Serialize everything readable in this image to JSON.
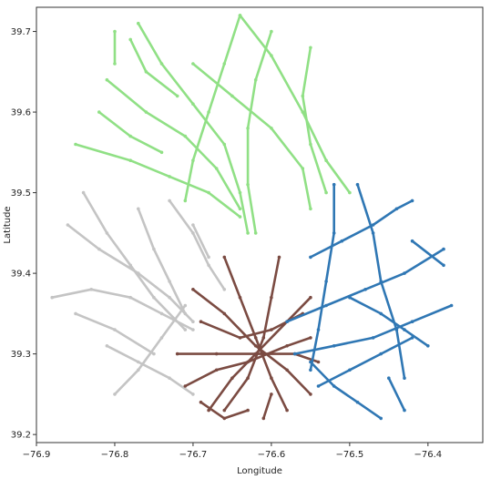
{
  "chart_data": {
    "type": "map-scatter",
    "xlabel": "Longitude",
    "ylabel": "Latitude",
    "xlim": [
      -76.9,
      -76.33
    ],
    "ylim": [
      39.19,
      39.73
    ],
    "xticks": [
      -76.9,
      -76.8,
      -76.7,
      -76.6,
      -76.5,
      -76.4
    ],
    "yticks": [
      39.2,
      39.3,
      39.4,
      39.5,
      39.6,
      39.7
    ],
    "xtick_labels": [
      "−76.9",
      "−76.8",
      "−76.7",
      "−76.6",
      "−76.5",
      "−76.4"
    ],
    "ytick_labels": [
      "39.2",
      "39.3",
      "39.4",
      "39.5",
      "39.6",
      "39.7"
    ],
    "grid": false,
    "legend": "none",
    "series": [
      {
        "color": "#90e085",
        "paths": [
          [
            [
              -76.77,
              39.71
            ],
            [
              -76.74,
              39.66
            ],
            [
              -76.7,
              39.61
            ],
            [
              -76.66,
              39.56
            ],
            [
              -76.64,
              39.5
            ],
            [
              -76.63,
              39.45
            ]
          ],
          [
            [
              -76.64,
              39.72
            ],
            [
              -76.66,
              39.66
            ],
            [
              -76.68,
              39.6
            ],
            [
              -76.7,
              39.54
            ],
            [
              -76.71,
              39.49
            ]
          ],
          [
            [
              -76.81,
              39.64
            ],
            [
              -76.76,
              39.6
            ],
            [
              -76.71,
              39.57
            ],
            [
              -76.67,
              39.53
            ],
            [
              -76.64,
              39.48
            ]
          ],
          [
            [
              -76.85,
              39.56
            ],
            [
              -76.78,
              39.54
            ],
            [
              -76.73,
              39.52
            ],
            [
              -76.68,
              39.5
            ],
            [
              -76.64,
              39.47
            ]
          ],
          [
            [
              -76.64,
              39.72
            ],
            [
              -76.6,
              39.67
            ],
            [
              -76.56,
              39.6
            ],
            [
              -76.53,
              39.54
            ],
            [
              -76.5,
              39.5
            ]
          ],
          [
            [
              -76.6,
              39.7
            ],
            [
              -76.62,
              39.64
            ],
            [
              -76.63,
              39.58
            ],
            [
              -76.63,
              39.51
            ],
            [
              -76.62,
              39.45
            ]
          ],
          [
            [
              -76.55,
              39.68
            ],
            [
              -76.56,
              39.62
            ],
            [
              -76.55,
              39.56
            ],
            [
              -76.53,
              39.5
            ]
          ],
          [
            [
              -76.7,
              39.66
            ],
            [
              -76.65,
              39.62
            ],
            [
              -76.6,
              39.58
            ],
            [
              -76.56,
              39.53
            ],
            [
              -76.55,
              39.48
            ]
          ],
          [
            [
              -76.78,
              39.69
            ],
            [
              -76.76,
              39.65
            ],
            [
              -76.72,
              39.62
            ]
          ],
          [
            [
              -76.82,
              39.6
            ],
            [
              -76.78,
              39.57
            ],
            [
              -76.74,
              39.55
            ]
          ],
          [
            [
              -76.8,
              39.7
            ],
            [
              -76.8,
              39.66
            ]
          ]
        ]
      },
      {
        "color": "#c4c4c4",
        "paths": [
          [
            [
              -76.88,
              39.37
            ],
            [
              -76.83,
              39.38
            ],
            [
              -76.78,
              39.37
            ],
            [
              -76.74,
              39.35
            ],
            [
              -76.7,
              39.33
            ]
          ],
          [
            [
              -76.86,
              39.46
            ],
            [
              -76.82,
              39.43
            ],
            [
              -76.77,
              39.4
            ],
            [
              -76.73,
              39.37
            ],
            [
              -76.7,
              39.34
            ]
          ],
          [
            [
              -76.84,
              39.5
            ],
            [
              -76.81,
              39.45
            ],
            [
              -76.78,
              39.41
            ],
            [
              -76.75,
              39.37
            ],
            [
              -76.71,
              39.33
            ]
          ],
          [
            [
              -76.77,
              39.48
            ],
            [
              -76.75,
              39.43
            ],
            [
              -76.73,
              39.39
            ],
            [
              -76.71,
              39.35
            ]
          ],
          [
            [
              -76.73,
              39.49
            ],
            [
              -76.7,
              39.45
            ],
            [
              -76.68,
              39.41
            ],
            [
              -76.66,
              39.38
            ]
          ],
          [
            [
              -76.81,
              39.31
            ],
            [
              -76.77,
              39.29
            ],
            [
              -76.73,
              39.27
            ],
            [
              -76.7,
              39.25
            ]
          ],
          [
            [
              -76.8,
              39.25
            ],
            [
              -76.77,
              39.28
            ],
            [
              -76.74,
              39.32
            ],
            [
              -76.71,
              39.36
            ]
          ],
          [
            [
              -76.85,
              39.35
            ],
            [
              -76.8,
              39.33
            ],
            [
              -76.75,
              39.3
            ]
          ],
          [
            [
              -76.7,
              39.46
            ],
            [
              -76.68,
              39.42
            ]
          ]
        ]
      },
      {
        "color": "#7b4b42",
        "paths": [
          [
            [
              -76.72,
              39.3
            ],
            [
              -76.67,
              39.3
            ],
            [
              -76.62,
              39.3
            ],
            [
              -76.57,
              39.3
            ],
            [
              -76.54,
              39.29
            ]
          ],
          [
            [
              -76.66,
              39.42
            ],
            [
              -76.64,
              39.37
            ],
            [
              -76.62,
              39.32
            ],
            [
              -76.6,
              39.27
            ],
            [
              -76.58,
              39.23
            ]
          ],
          [
            [
              -76.59,
              39.42
            ],
            [
              -76.6,
              39.37
            ],
            [
              -76.61,
              39.32
            ],
            [
              -76.63,
              39.27
            ],
            [
              -76.66,
              39.23
            ]
          ],
          [
            [
              -76.7,
              39.38
            ],
            [
              -76.66,
              39.35
            ],
            [
              -76.62,
              39.31
            ],
            [
              -76.58,
              39.28
            ],
            [
              -76.55,
              39.25
            ]
          ],
          [
            [
              -76.68,
              39.23
            ],
            [
              -76.65,
              39.27
            ],
            [
              -76.62,
              39.3
            ],
            [
              -76.58,
              39.34
            ],
            [
              -76.55,
              39.37
            ]
          ],
          [
            [
              -76.71,
              39.26
            ],
            [
              -76.67,
              39.28
            ],
            [
              -76.63,
              39.29
            ],
            [
              -76.58,
              39.31
            ],
            [
              -76.55,
              39.32
            ]
          ],
          [
            [
              -76.69,
              39.34
            ],
            [
              -76.64,
              39.32
            ],
            [
              -76.6,
              39.33
            ],
            [
              -76.56,
              39.35
            ]
          ],
          [
            [
              -76.69,
              39.24
            ],
            [
              -76.66,
              39.22
            ],
            [
              -76.63,
              39.23
            ]
          ],
          [
            [
              -76.61,
              39.22
            ],
            [
              -76.6,
              39.25
            ]
          ]
        ]
      },
      {
        "color": "#2f77b4",
        "paths": [
          [
            [
              -76.58,
              39.34
            ],
            [
              -76.53,
              39.36
            ],
            [
              -76.48,
              39.38
            ],
            [
              -76.43,
              39.4
            ],
            [
              -76.38,
              39.43
            ]
          ],
          [
            [
              -76.55,
              39.42
            ],
            [
              -76.51,
              39.44
            ],
            [
              -76.47,
              39.46
            ],
            [
              -76.44,
              39.48
            ],
            [
              -76.42,
              39.49
            ]
          ],
          [
            [
              -76.57,
              39.3
            ],
            [
              -76.52,
              39.31
            ],
            [
              -76.47,
              39.32
            ],
            [
              -76.42,
              39.34
            ],
            [
              -76.37,
              39.36
            ]
          ],
          [
            [
              -76.54,
              39.26
            ],
            [
              -76.5,
              39.28
            ],
            [
              -76.46,
              39.3
            ],
            [
              -76.42,
              39.32
            ]
          ],
          [
            [
              -76.52,
              39.51
            ],
            [
              -76.52,
              39.45
            ],
            [
              -76.53,
              39.39
            ],
            [
              -76.54,
              39.33
            ],
            [
              -76.55,
              39.28
            ]
          ],
          [
            [
              -76.49,
              39.51
            ],
            [
              -76.47,
              39.45
            ],
            [
              -76.46,
              39.39
            ],
            [
              -76.44,
              39.33
            ],
            [
              -76.43,
              39.27
            ]
          ],
          [
            [
              -76.55,
              39.29
            ],
            [
              -76.52,
              39.26
            ],
            [
              -76.49,
              39.24
            ],
            [
              -76.46,
              39.22
            ]
          ],
          [
            [
              -76.5,
              39.37
            ],
            [
              -76.46,
              39.35
            ],
            [
              -76.43,
              39.33
            ],
            [
              -76.4,
              39.31
            ]
          ],
          [
            [
              -76.45,
              39.27
            ],
            [
              -76.43,
              39.23
            ]
          ],
          [
            [
              -76.42,
              39.44
            ],
            [
              -76.38,
              39.41
            ]
          ]
        ]
      }
    ]
  }
}
